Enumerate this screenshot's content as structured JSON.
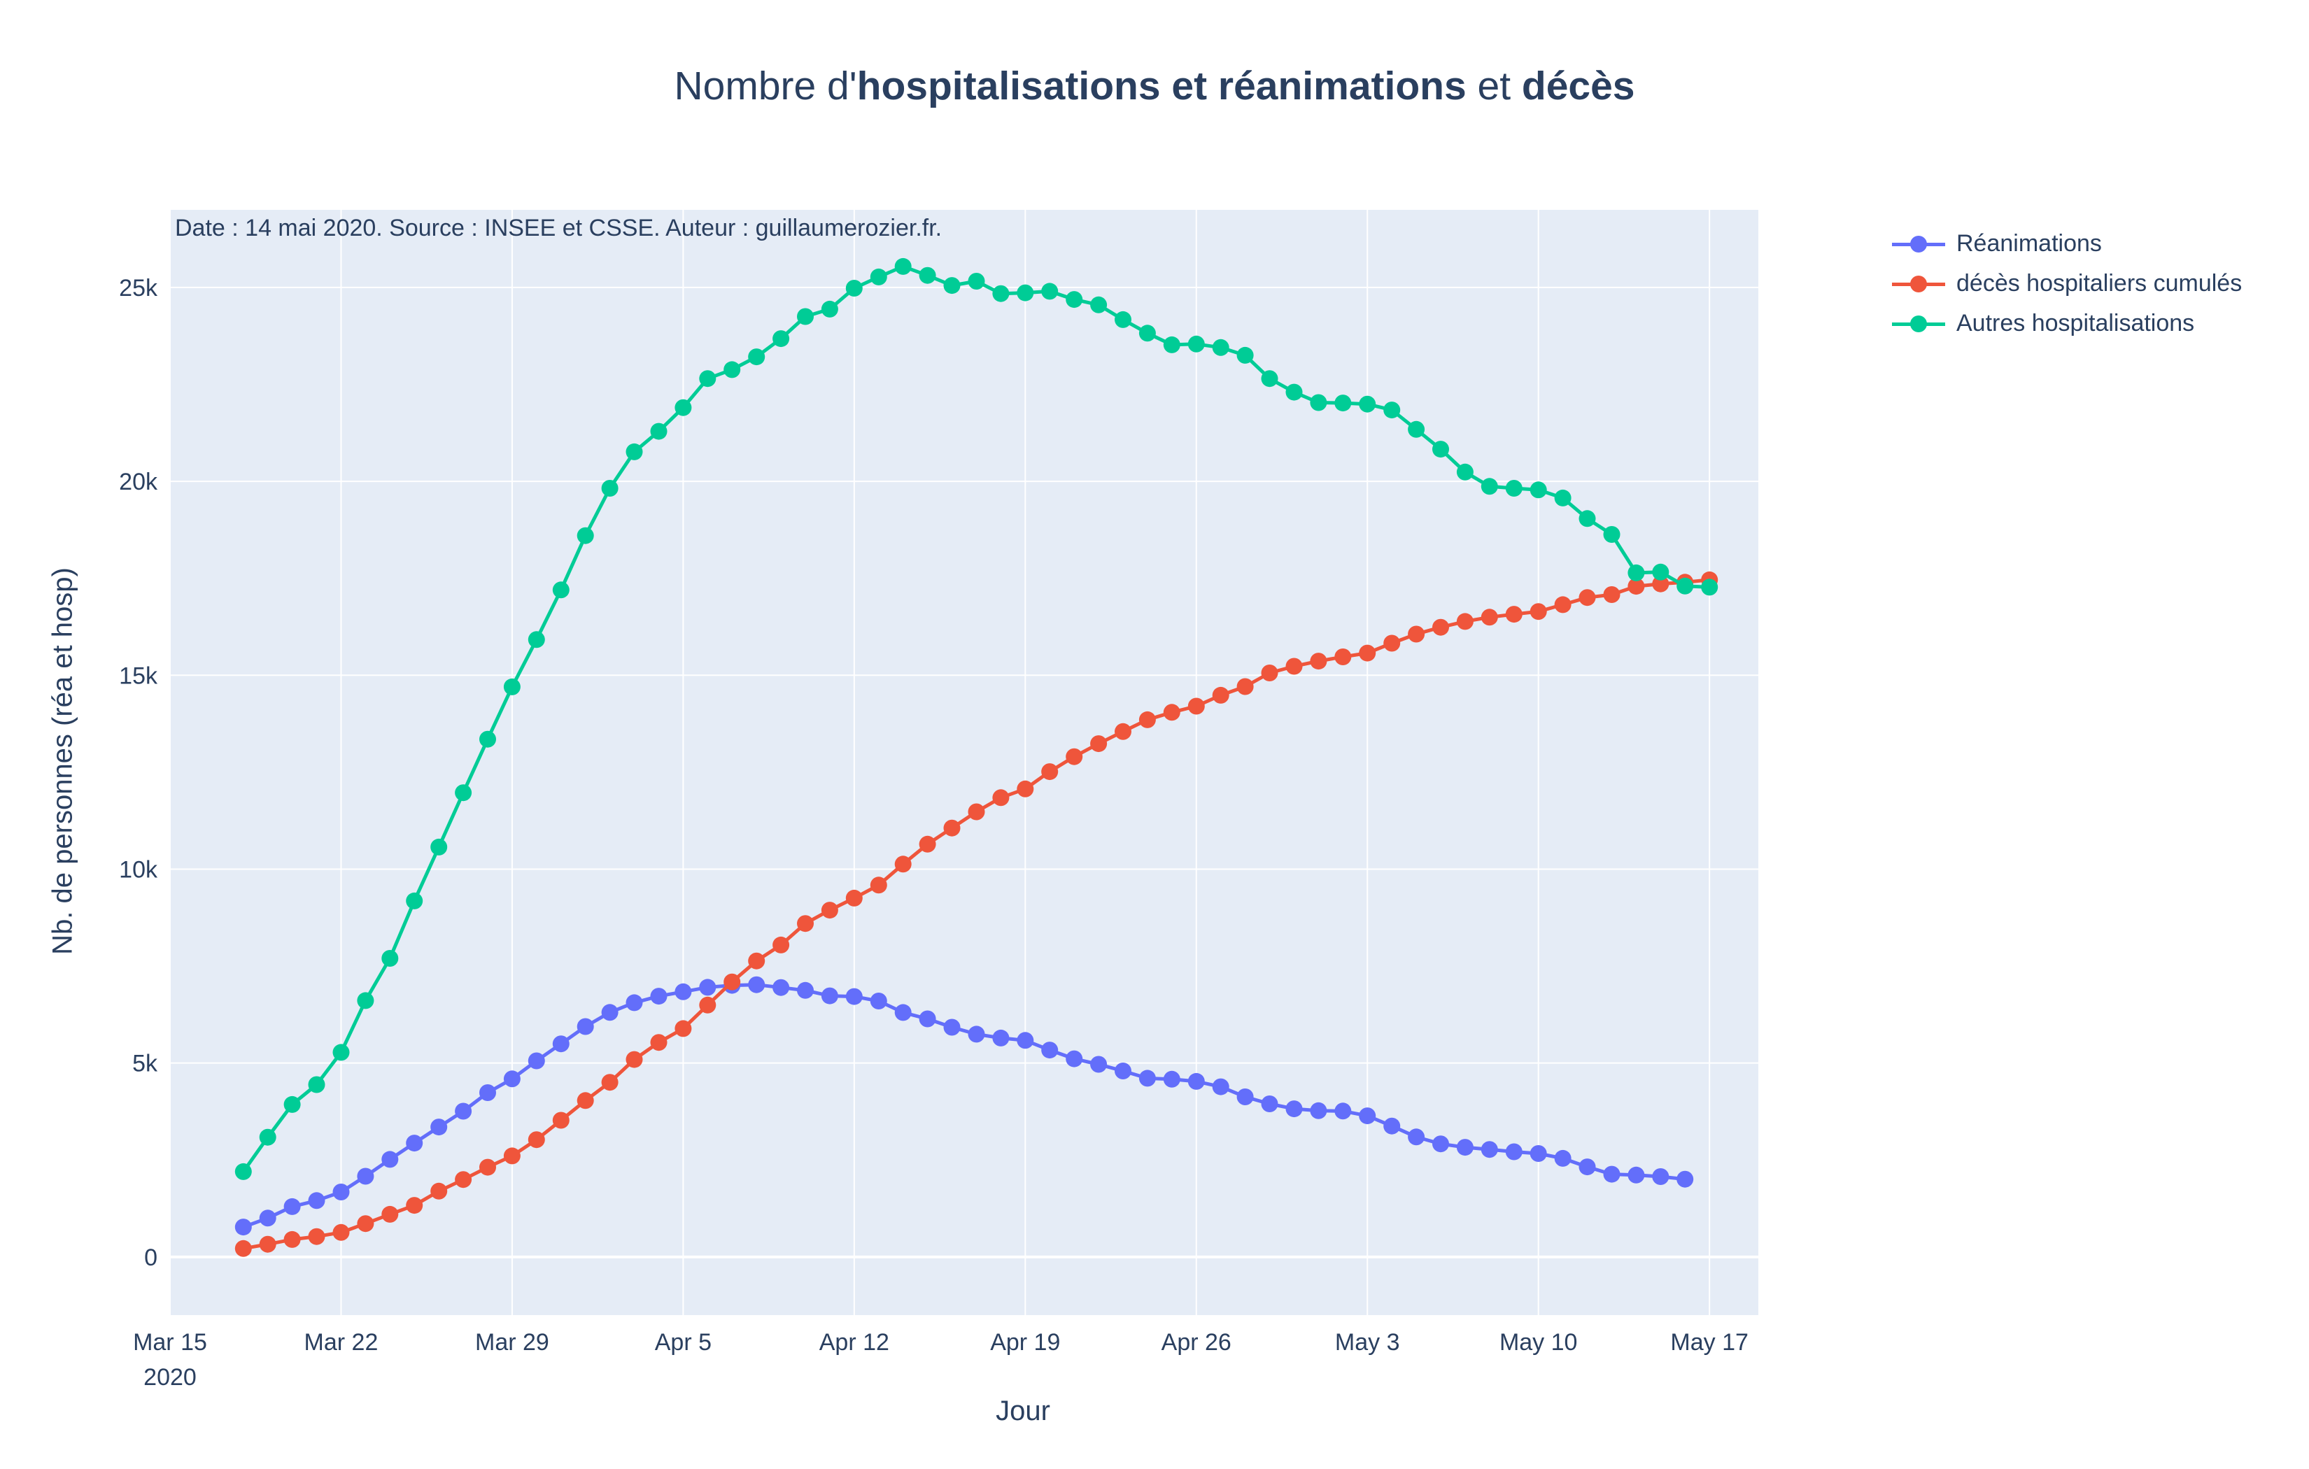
{
  "title": {
    "prefix": "Nombre d'",
    "bold1": "hospitalisations et réanimations",
    "middle": " et ",
    "bold2": "décès"
  },
  "annotation": "Date : 14 mai 2020. Source : INSEE et CSSE. Auteur : guillaumerozier.fr.",
  "colors": {
    "plot_bg": "#e5ecf6",
    "grid": "#ffffff",
    "text": "#2a3f5f",
    "reanimations": "#636efa",
    "deces": "#ef553b",
    "autres": "#00cc96"
  },
  "chart_data": {
    "type": "line",
    "title": "Nombre d'hospitalisations et réanimations et décès",
    "xlabel": "Jour",
    "ylabel": "Nb. de personnes (réa et hosp)",
    "xlim": [
      "2020-03-15",
      "2020-05-19"
    ],
    "ylim": [
      -1500,
      27000
    ],
    "y_ticks": [
      0,
      5000,
      10000,
      15000,
      20000,
      25000
    ],
    "y_tick_labels": [
      "0",
      "5k",
      "10k",
      "15k",
      "20k",
      "25k"
    ],
    "x_ticks": [
      "2020-03-15",
      "2020-03-22",
      "2020-03-29",
      "2020-04-05",
      "2020-04-12",
      "2020-04-19",
      "2020-04-26",
      "2020-05-03",
      "2020-05-10",
      "2020-05-17"
    ],
    "x_tick_labels": [
      "Mar 15",
      "Mar 22",
      "Mar 29",
      "Apr 5",
      "Apr 12",
      "Apr 19",
      "Apr 26",
      "May 3",
      "May 10",
      "May 17"
    ],
    "x_year_label": "2020",
    "grid": true,
    "legend_position": "top-right, outside plot",
    "mode": "lines+markers",
    "x_start": "2020-03-18",
    "series": [
      {
        "name": "Réanimations",
        "color": "#636efa",
        "values": [
          771,
          1002,
          1297,
          1453,
          1674,
          2080,
          2516,
          2935,
          3351,
          3758,
          4236,
          4592,
          5056,
          5496,
          5940,
          6305,
          6556,
          6723,
          6838,
          6952,
          7004,
          7019,
          6948,
          6873,
          6733,
          6714,
          6599,
          6304,
          6139,
          5922,
          5744,
          5644,
          5584,
          5334,
          5109,
          4967,
          4795,
          4608,
          4583,
          4526,
          4387,
          4128,
          3947,
          3819,
          3770,
          3762,
          3639,
          3375,
          3095,
          2916,
          2828,
          2772,
          2712,
          2666,
          2542,
          2322,
          2132,
          2112,
          2072,
          2005
        ]
      },
      {
        "name": "décès hospitaliers cumulés",
        "color": "#ef553b",
        "values": [
          218,
          327,
          450,
          525,
          632,
          860,
          1100,
          1331,
          1696,
          1995,
          2314,
          2606,
          3024,
          3523,
          4032,
          4503,
          5091,
          5532,
          5889,
          6494,
          7091,
          7632,
          8044,
          8598,
          8943,
          9253,
          9588,
          10129,
          10643,
          11060,
          11478,
          11842,
          12069,
          12513,
          12900,
          13236,
          13547,
          13852,
          14043,
          14202,
          14483,
          14707,
          15059,
          15230,
          15363,
          15473,
          15571,
          15826,
          16060,
          16237,
          16386,
          16497,
          16573,
          16642,
          16820,
          17003,
          17079,
          17294,
          17355,
          17398,
          17460
        ]
      },
      {
        "name": "Autres hospitalisations",
        "color": "#00cc96",
        "values": [
          2200,
          3087,
          3932,
          4443,
          5275,
          6610,
          7700,
          9180,
          10570,
          11970,
          13350,
          14700,
          15920,
          17200,
          18600,
          19820,
          20760,
          21290,
          21900,
          22650,
          22880,
          23210,
          23680,
          24250,
          24440,
          24980,
          25270,
          25540,
          25310,
          25050,
          25160,
          24840,
          24860,
          24900,
          24690,
          24550,
          24170,
          23820,
          23520,
          23540,
          23450,
          23250,
          22650,
          22300,
          22030,
          22020,
          21990,
          21840,
          21340,
          20830,
          20240,
          19870,
          19820,
          19780,
          19570,
          19040,
          18630,
          17640,
          17660,
          17300,
          17270
        ]
      }
    ]
  }
}
